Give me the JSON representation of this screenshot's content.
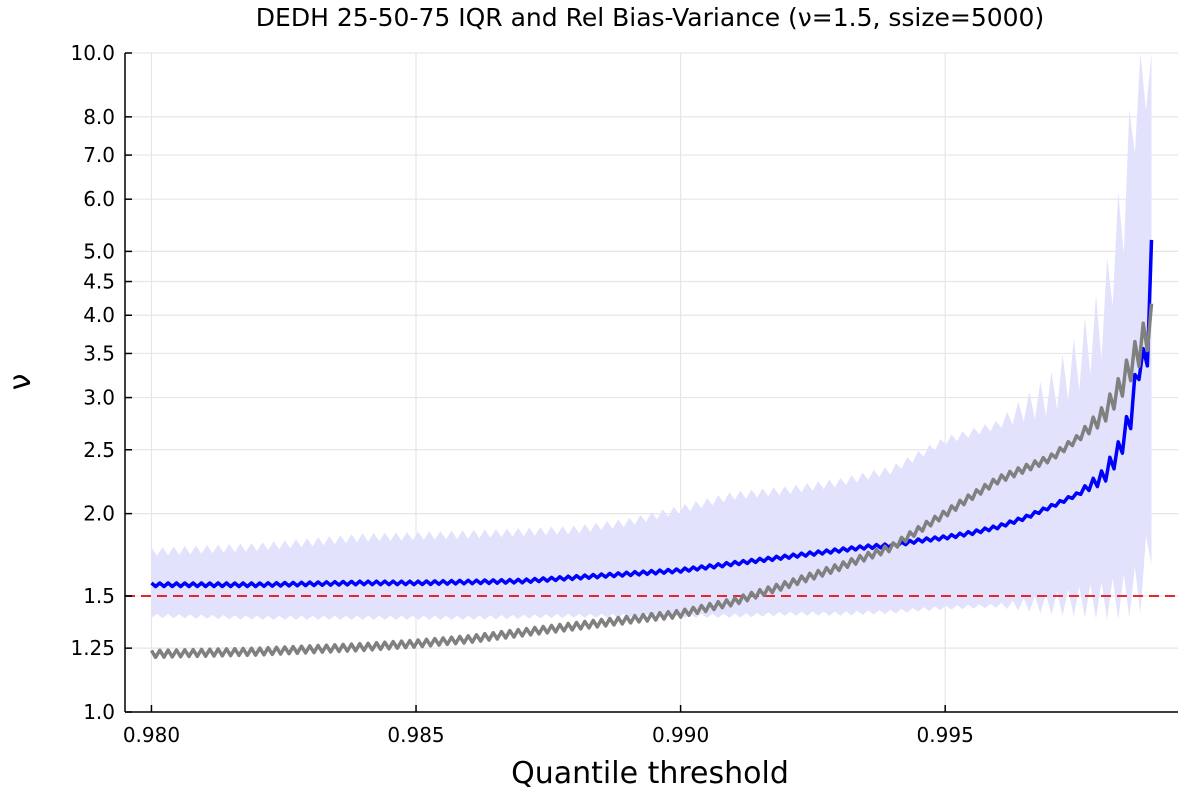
{
  "chart_data": {
    "type": "line",
    "title": "DEDH 25-50-75 IQR and Rel Bias-Variance (ν=1.5, ssize=5000)",
    "xlabel": "Quantile threshold",
    "ylabel": "ν",
    "xlim": [
      0.9795,
      0.9994
    ],
    "ylim": [
      1.0,
      10.0
    ],
    "y_scale": "log",
    "grid": true,
    "x_ticks": [
      {
        "value": 0.98,
        "label": "0.980"
      },
      {
        "value": 0.985,
        "label": "0.985"
      },
      {
        "value": 0.99,
        "label": "0.990"
      },
      {
        "value": 0.995,
        "label": "0.995"
      }
    ],
    "y_ticks": [
      {
        "value": 1.0,
        "label": "1.0"
      },
      {
        "value": 1.25,
        "label": "1.25"
      },
      {
        "value": 1.5,
        "label": "1.5"
      },
      {
        "value": 2.0,
        "label": "2.0"
      },
      {
        "value": 2.5,
        "label": "2.5"
      },
      {
        "value": 3.0,
        "label": "3.0"
      },
      {
        "value": 3.5,
        "label": "3.5"
      },
      {
        "value": 4.0,
        "label": "4.0"
      },
      {
        "value": 4.5,
        "label": "4.5"
      },
      {
        "value": 5.0,
        "label": "5.0"
      },
      {
        "value": 6.0,
        "label": "6.0"
      },
      {
        "value": 7.0,
        "label": "7.0"
      },
      {
        "value": 8.0,
        "label": "8.0"
      },
      {
        "value": 10.0,
        "label": "10.0"
      }
    ],
    "reference_line": {
      "y": 1.5,
      "color": "#e8262b",
      "style": "dashed"
    },
    "band": {
      "color": "#e2e2fc",
      "x": [
        0.98,
        0.982,
        0.984,
        0.986,
        0.988,
        0.989,
        0.99,
        0.991,
        0.992,
        0.993,
        0.994,
        0.995,
        0.996,
        0.997,
        0.9975,
        0.998,
        0.9984,
        0.9987,
        0.9989
      ],
      "lower": [
        1.4,
        1.39,
        1.39,
        1.39,
        1.4,
        1.4,
        1.4,
        1.4,
        1.41,
        1.41,
        1.42,
        1.44,
        1.45,
        1.46,
        1.47,
        1.48,
        1.5,
        1.55,
        1.85
      ],
      "upper": [
        1.75,
        1.78,
        1.84,
        1.86,
        1.89,
        1.94,
        2.03,
        2.13,
        2.17,
        2.23,
        2.33,
        2.58,
        2.73,
        3.05,
        3.4,
        4.0,
        6.0,
        10.0,
        10.0
      ]
    },
    "series": [
      {
        "color": "#0000ff",
        "x": [
          0.98,
          0.981,
          0.982,
          0.983,
          0.984,
          0.985,
          0.986,
          0.987,
          0.988,
          0.989,
          0.99,
          0.991,
          0.992,
          0.993,
          0.9935,
          0.994,
          0.9945,
          0.995,
          0.9955,
          0.996,
          0.9965,
          0.997,
          0.9975,
          0.998,
          0.9983,
          0.9985,
          0.9987,
          0.9988,
          0.9989
        ],
        "values": [
          1.56,
          1.56,
          1.56,
          1.565,
          1.57,
          1.57,
          1.575,
          1.58,
          1.6,
          1.62,
          1.64,
          1.68,
          1.72,
          1.76,
          1.78,
          1.79,
          1.82,
          1.84,
          1.87,
          1.91,
          1.97,
          2.05,
          2.14,
          2.28,
          2.5,
          2.8,
          3.5,
          3.2,
          4.9
        ]
      },
      {
        "color": "#808080",
        "x": [
          0.98,
          0.981,
          0.982,
          0.983,
          0.984,
          0.985,
          0.986,
          0.987,
          0.988,
          0.989,
          0.99,
          0.991,
          0.992,
          0.993,
          0.994,
          0.995,
          0.996,
          0.997,
          0.9975,
          0.998,
          0.9983,
          0.9985,
          0.9987,
          0.9989
        ],
        "values": [
          1.225,
          1.23,
          1.235,
          1.245,
          1.255,
          1.27,
          1.29,
          1.32,
          1.35,
          1.38,
          1.41,
          1.47,
          1.56,
          1.66,
          1.78,
          2.0,
          2.25,
          2.43,
          2.6,
          2.83,
          3.1,
          3.35,
          3.6,
          3.9
        ]
      }
    ]
  }
}
